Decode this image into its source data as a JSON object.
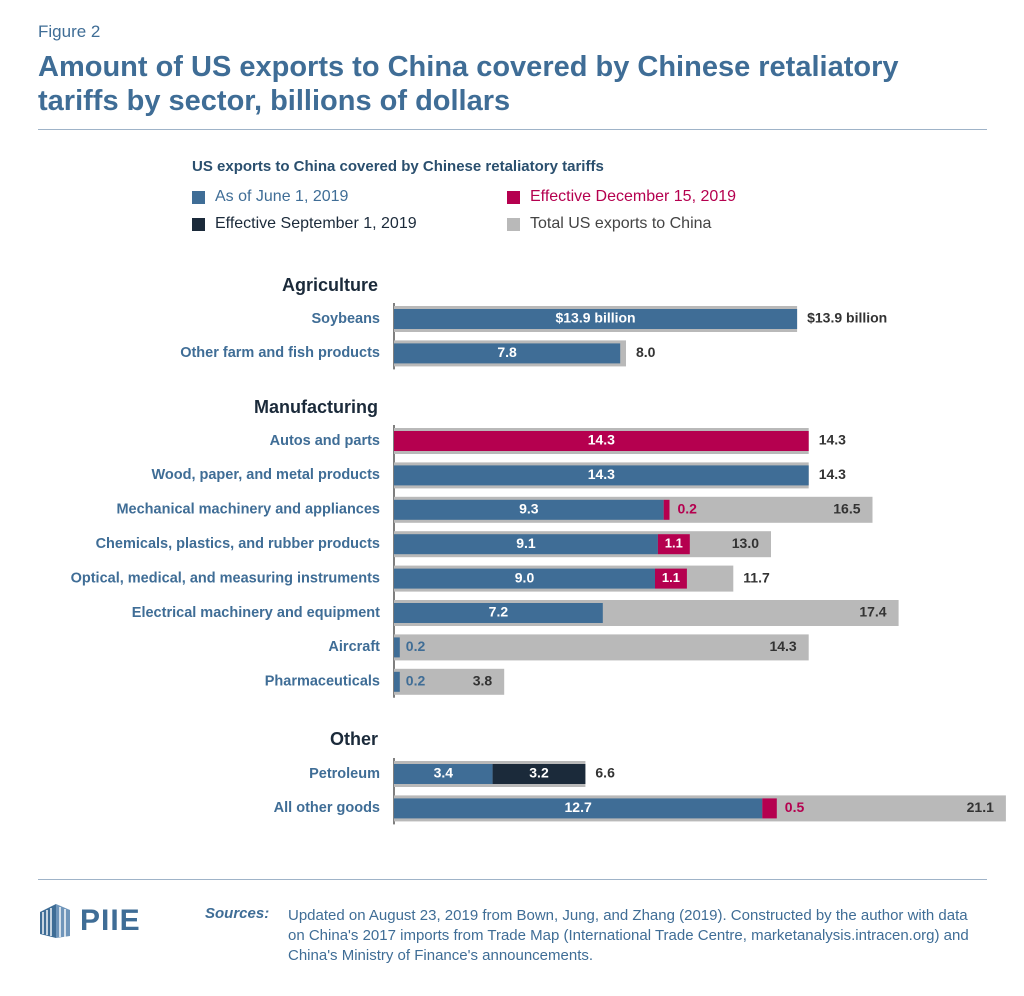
{
  "figure_label": "Figure 2",
  "title": "Amount of US exports to China covered by Chinese retaliatory tariffs by sector, billions of dollars",
  "legend": {
    "title": "US exports to China covered by Chinese retaliatory tariffs",
    "items": [
      {
        "label": "As of June 1, 2019",
        "color": "#3f6d96"
      },
      {
        "label": "Effective December 15, 2019",
        "color": "#b5004f"
      },
      {
        "label": "Effective September 1, 2019",
        "color": "#1b2a3a"
      },
      {
        "label": "Total US exports to China",
        "color": "#b9b9b9"
      }
    ]
  },
  "chart_data": {
    "type": "bar",
    "orientation": "horizontal",
    "colors": {
      "june": "#3f6d96",
      "sept": "#1b2a3a",
      "dec": "#b5004f",
      "total": "#b9b9b9"
    },
    "groups": [
      {
        "name": "Agriculture",
        "rows": [
          {
            "label": "Soybeans",
            "june": 13.9,
            "sept": 0,
            "dec": 0,
            "total": 13.9,
            "june_label": "$13.9 billion",
            "total_label": "$13.9 billion"
          },
          {
            "label": "Other farm and fish products",
            "june": 7.8,
            "sept": 0,
            "dec": 0,
            "total": 8.0,
            "june_label": "7.8",
            "total_label": "8.0"
          }
        ]
      },
      {
        "name": "Manufacturing",
        "rows": [
          {
            "label": "Autos and parts",
            "june": 0,
            "sept": 0,
            "dec": 14.3,
            "total": 14.3,
            "dec_label": "14.3",
            "total_label": "14.3"
          },
          {
            "label": "Wood, paper, and metal products",
            "june": 14.3,
            "sept": 0,
            "dec": 0,
            "total": 14.3,
            "june_label": "14.3",
            "total_label": "14.3"
          },
          {
            "label": "Mechanical machinery and appliances",
            "june": 9.3,
            "sept": 0,
            "dec": 0.2,
            "total": 16.5,
            "june_label": "9.3",
            "dec_label": "0.2",
            "total_label": "16.5"
          },
          {
            "label": "Chemicals, plastics, and rubber products",
            "june": 9.1,
            "sept": 0,
            "dec": 1.1,
            "total": 13.0,
            "june_label": "9.1",
            "dec_label": "1.1",
            "total_label": "13.0"
          },
          {
            "label": "Optical, medical, and measuring instruments",
            "june": 9.0,
            "sept": 0,
            "dec": 1.1,
            "total": 11.7,
            "june_label": "9.0",
            "dec_label": "1.1",
            "total_label": "11.7"
          },
          {
            "label": "Electrical machinery and equipment",
            "june": 7.2,
            "sept": 0,
            "dec": 0,
            "total": 17.4,
            "june_label": "7.2",
            "total_label": "17.4"
          },
          {
            "label": "Aircraft",
            "june": 0.2,
            "sept": 0,
            "dec": 0,
            "total": 14.3,
            "june_label": "0.2",
            "total_label": "14.3"
          },
          {
            "label": "Pharmaceuticals",
            "june": 0.2,
            "sept": 0,
            "dec": 0,
            "total": 3.8,
            "june_label": "0.2",
            "total_label": "3.8"
          }
        ]
      },
      {
        "name": "Other",
        "rows": [
          {
            "label": "Petroleum",
            "june": 3.4,
            "sept": 3.2,
            "dec": 0,
            "total": 6.6,
            "june_label": "3.4",
            "sept_label": "3.2",
            "total_label": "6.6"
          },
          {
            "label": "All other goods",
            "june": 12.7,
            "sept": 0,
            "dec": 0.5,
            "total": 21.1,
            "june_label": "12.7",
            "dec_label": "0.5",
            "total_label": "21.1"
          }
        ]
      }
    ]
  },
  "footer": {
    "logo_text": "PIIE",
    "sources_label": "Sources:",
    "sources_text": "Updated on August 23, 2019 from Bown, Jung, and Zhang (2019). Constructed by the author with data on China's 2017 imports from Trade Map (International Trade Centre, marketanalysis.intracen.org) and China's Ministry of Finance's announcements."
  }
}
